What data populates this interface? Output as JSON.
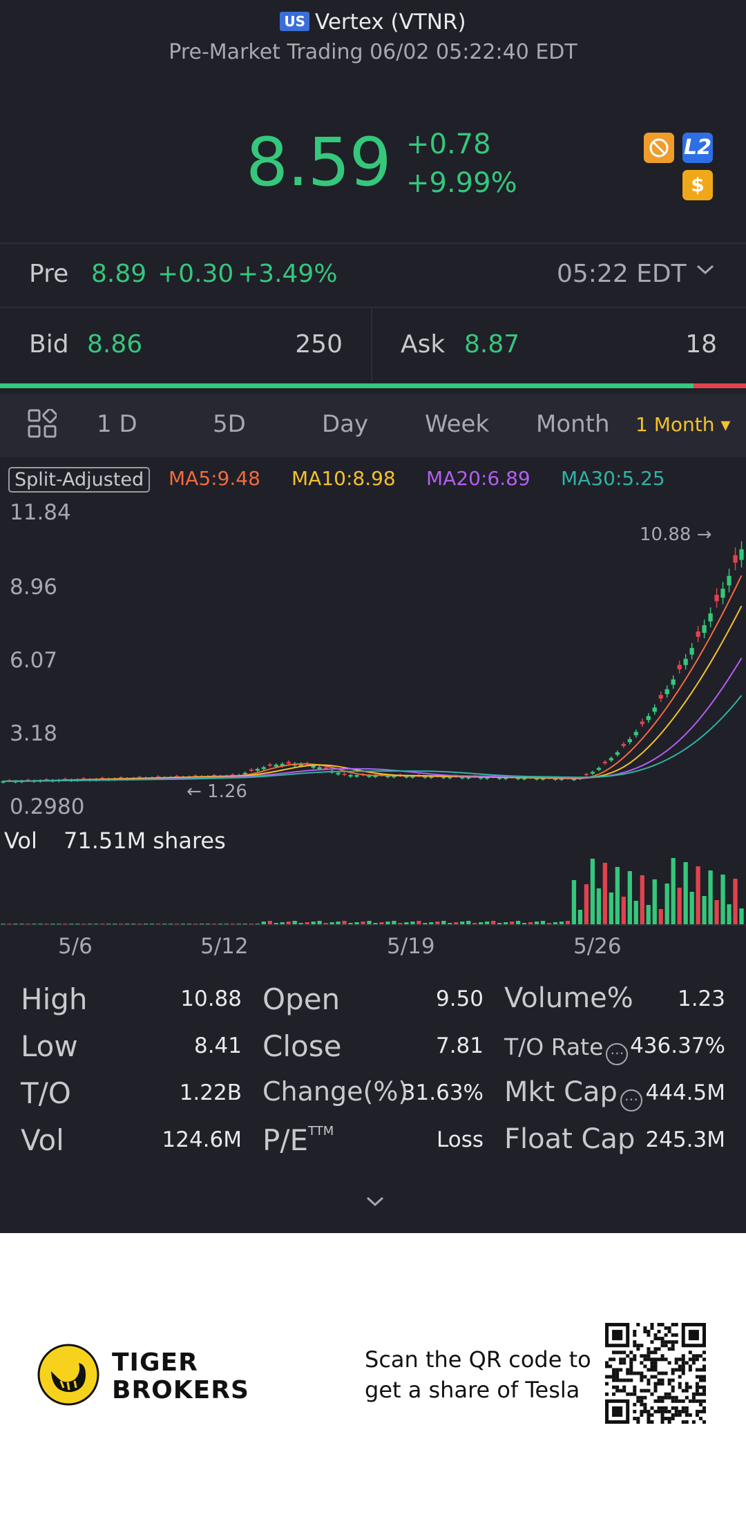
{
  "header": {
    "market_flag": "US",
    "title": "Vertex (VTNR)",
    "subtitle": "Pre-Market Trading 06/02 05:22:40 EDT"
  },
  "quote": {
    "price": "8.59",
    "change": "+0.78",
    "change_pct": "+9.99%",
    "badges": [
      "no-margin-icon",
      "L2",
      "$"
    ],
    "badge_l2": "L2",
    "badge_dollar": "$"
  },
  "pre": {
    "label": "Pre",
    "price": "8.89",
    "change": "+0.30",
    "change_pct": "+3.49%",
    "time": "05:22 EDT"
  },
  "bid_ask": {
    "bid_label": "Bid",
    "bid_price": "8.86",
    "bid_size": "250",
    "ask_label": "Ask",
    "ask_price": "8.87",
    "ask_size": "18",
    "bid_fraction": 0.93
  },
  "tabs": {
    "items": [
      "1 D",
      "5D",
      "Day",
      "Week",
      "Month"
    ],
    "active": "1 Month ▾"
  },
  "legend": {
    "split": "Split-Adjusted",
    "ma5": "MA5:9.48",
    "ma10": "MA10:8.98",
    "ma20": "MA20:6.89",
    "ma30": "MA30:5.25"
  },
  "colors": {
    "up": "#35c77b",
    "down": "#e0434d",
    "ma5": "#f46a3c",
    "ma10": "#f5c12b",
    "ma20": "#b35ef0",
    "ma30": "#2fb3a4",
    "active_tab": "#f5c12b"
  },
  "chart_data": {
    "type": "candlestick",
    "y_ticks": [
      "11.84",
      "8.96",
      "6.07",
      "3.18",
      "0.2980"
    ],
    "ylim": [
      0.298,
      11.84
    ],
    "max_label": "10.88 →",
    "min_label": "← 1.26",
    "x_ticks": [
      "5/6",
      "5/12",
      "5/19",
      "5/26"
    ],
    "volume_label": "Vol",
    "volume_value": "71.51M shares"
  },
  "stats": {
    "high_label": "High",
    "high": "10.88",
    "low_label": "Low",
    "low": "8.41",
    "to_label": "T/O",
    "to": "1.22B",
    "vol_label": "Vol",
    "vol": "124.6M",
    "open_label": "Open",
    "open": "9.50",
    "close_label": "Close",
    "close": "7.81",
    "change_label": "Change(%)",
    "change": "31.63%",
    "pe_label": "P/E",
    "pe_sup": "TTM",
    "pe": "Loss",
    "volpct_label": "Volume%",
    "volpct": "1.23",
    "torate_label": "T/O Rate",
    "torate": "436.37%",
    "mktcap_label": "Mkt Cap",
    "mktcap": "444.5M",
    "floatcap_label": "Float Cap",
    "floatcap": "245.3M"
  },
  "footer": {
    "brand_line1": "TIGER",
    "brand_line2": "BROKERS",
    "cta_line1": "Scan the QR code to",
    "cta_line2": "get a share of Tesla"
  }
}
